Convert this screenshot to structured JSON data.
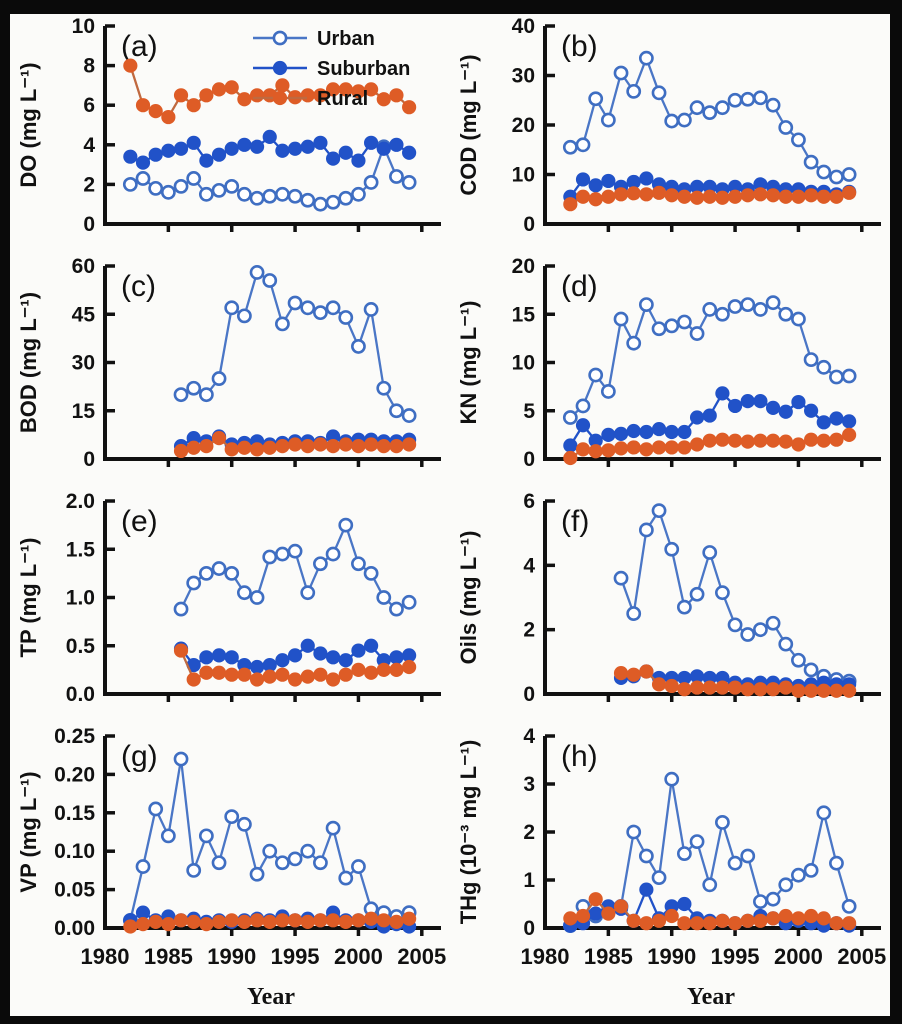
{
  "figure": {
    "xlabel": "Year",
    "x_ticks": [
      1980,
      1985,
      1990,
      1995,
      2000,
      2005
    ],
    "x_range": [
      1980,
      2006.2
    ],
    "colors": {
      "urban_line": "#4a76c6",
      "urban_marker_stroke": "#3f6ec2",
      "urban_marker_fill": "#ffffff",
      "suburban": "#2152c8",
      "rural_marker": "#de5c26",
      "rural_line": "#c0693f",
      "axis": "#111111"
    },
    "legend": [
      {
        "label": "Urban",
        "series": "urban"
      },
      {
        "label": "Suburban",
        "series": "suburban"
      },
      {
        "label": "Rural",
        "series": "rural"
      }
    ]
  },
  "chart_data": [
    {
      "type": "line",
      "panel": "(a)",
      "ylabel": "DO (mg L⁻¹)",
      "ylim": [
        0,
        10
      ],
      "yticks": [
        0,
        2,
        4,
        6,
        8,
        10
      ],
      "ytick_labels": [
        "0",
        "2",
        "4",
        "6",
        "8",
        "10"
      ],
      "show_legend": true,
      "series": [
        {
          "name": "Urban",
          "style": "urban",
          "start_year": 1982,
          "values": [
            2.0,
            2.3,
            1.8,
            1.6,
            1.9,
            2.3,
            1.5,
            1.7,
            1.9,
            1.5,
            1.3,
            1.4,
            1.5,
            1.4,
            1.2,
            1.0,
            1.1,
            1.3,
            1.5,
            2.1,
            3.9,
            2.4,
            2.1
          ]
        },
        {
          "name": "Suburban",
          "style": "suburban",
          "start_year": 1982,
          "values": [
            3.4,
            3.1,
            3.5,
            3.7,
            3.8,
            4.1,
            3.2,
            3.5,
            3.8,
            4.0,
            3.9,
            4.4,
            3.7,
            3.8,
            3.9,
            4.1,
            3.3,
            3.6,
            3.2,
            4.1,
            3.8,
            4.0,
            3.6
          ]
        },
        {
          "name": "Rural",
          "style": "rural",
          "start_year": 1982,
          "values": [
            8.0,
            6.0,
            5.7,
            5.4,
            6.5,
            6.0,
            6.5,
            6.8,
            6.9,
            6.3,
            6.5,
            6.5,
            7.0,
            6.4,
            6.5,
            6.5,
            6.8,
            6.8,
            6.7,
            6.8,
            6.3,
            6.5,
            5.9
          ]
        }
      ]
    },
    {
      "type": "line",
      "panel": "(b)",
      "ylabel": "COD (mg L⁻¹)",
      "ylim": [
        0,
        40
      ],
      "yticks": [
        0,
        10,
        20,
        30,
        40
      ],
      "ytick_labels": [
        "0",
        "10",
        "20",
        "30",
        "40"
      ],
      "series": [
        {
          "name": "Urban",
          "style": "urban",
          "start_year": 1982,
          "values": [
            15.5,
            16,
            25.3,
            21,
            30.5,
            26.8,
            33.5,
            26.5,
            20.8,
            21,
            23.5,
            22.5,
            23.5,
            25,
            25.2,
            25.5,
            24,
            19.5,
            17,
            12.5,
            10.5,
            9.5,
            10
          ]
        },
        {
          "name": "Suburban",
          "style": "suburban",
          "start_year": 1982,
          "values": [
            5.5,
            9,
            7.8,
            8.7,
            7.5,
            8.5,
            9.2,
            8,
            7.5,
            7,
            7.5,
            7.5,
            7,
            7.5,
            7,
            8,
            7.5,
            7,
            7,
            6.5,
            6.5,
            6,
            6.5
          ]
        },
        {
          "name": "Rural",
          "style": "rural",
          "start_year": 1982,
          "values": [
            4,
            5.5,
            5,
            5.5,
            6,
            6.2,
            6,
            6.3,
            5.8,
            5.5,
            5.3,
            5.5,
            5.3,
            5.5,
            5.8,
            6,
            5.8,
            5.5,
            5.5,
            5.8,
            5.5,
            5.5,
            6.3
          ]
        }
      ]
    },
    {
      "type": "line",
      "panel": "(c)",
      "ylabel": "BOD (mg L⁻¹)",
      "ylim": [
        0,
        60
      ],
      "yticks": [
        0,
        15,
        30,
        45,
        60
      ],
      "ytick_labels": [
        "0",
        "15",
        "30",
        "45",
        "60"
      ],
      "series": [
        {
          "name": "Urban",
          "style": "urban",
          "start_year": 1986,
          "values": [
            20,
            22,
            20,
            25,
            47,
            44.5,
            58,
            55.5,
            42,
            48.5,
            47,
            45.5,
            47,
            44,
            35,
            46.5,
            22,
            15,
            13.5
          ]
        },
        {
          "name": "Suburban",
          "style": "suburban",
          "start_year": 1986,
          "values": [
            4,
            6.5,
            5.5,
            7,
            4.5,
            5,
            5.5,
            4.5,
            5,
            5.5,
            5.5,
            5,
            7,
            5.5,
            6,
            6,
            5.5,
            5.5,
            6
          ]
        },
        {
          "name": "Rural",
          "style": "rural",
          "start_year": 1986,
          "values": [
            2.5,
            3.5,
            4,
            6.5,
            3,
            3.5,
            3,
            3.5,
            4,
            4.5,
            4,
            4.5,
            4,
            4.5,
            4,
            4.5,
            4,
            4,
            4.5
          ]
        }
      ]
    },
    {
      "type": "line",
      "panel": "(d)",
      "ylabel": "KN (mg L⁻¹)",
      "ylim": [
        0,
        20
      ],
      "yticks": [
        0,
        5,
        10,
        15,
        20
      ],
      "ytick_labels": [
        "0",
        "5",
        "10",
        "15",
        "20"
      ],
      "series": [
        {
          "name": "Urban",
          "style": "urban",
          "start_year": 1982,
          "values": [
            4.3,
            5.5,
            8.7,
            7,
            14.5,
            12,
            16,
            13.5,
            13.8,
            14.2,
            13,
            15.5,
            15,
            15.8,
            16,
            15.5,
            16.2,
            15,
            14.5,
            10.3,
            9.5,
            8.5,
            8.6
          ]
        },
        {
          "name": "Suburban",
          "style": "suburban",
          "start_year": 1982,
          "values": [
            1.4,
            3.5,
            1.9,
            2.5,
            2.6,
            2.9,
            2.8,
            3.1,
            2.8,
            2.8,
            4.3,
            4.5,
            6.8,
            5.5,
            6,
            6,
            5.3,
            4.9,
            5.9,
            5,
            3.8,
            4.2,
            3.9
          ]
        },
        {
          "name": "Rural",
          "style": "rural",
          "start_year": 1982,
          "values": [
            0.1,
            1,
            0.8,
            0.9,
            1.1,
            1.2,
            1,
            1.2,
            1.2,
            1.2,
            1.5,
            1.9,
            2,
            1.9,
            1.8,
            1.9,
            1.9,
            1.8,
            1.5,
            2,
            1.9,
            2,
            2.5
          ]
        }
      ]
    },
    {
      "type": "line",
      "panel": "(e)",
      "ylabel": "TP (mg L⁻¹)",
      "ylim": [
        0,
        2.0
      ],
      "yticks": [
        0,
        0.5,
        1.0,
        1.5,
        2.0
      ],
      "ytick_labels": [
        "0.0",
        "0.5",
        "1.0",
        "1.5",
        "2.0"
      ],
      "series": [
        {
          "name": "Urban",
          "style": "urban",
          "start_year": 1986,
          "values": [
            0.88,
            1.15,
            1.25,
            1.3,
            1.25,
            1.05,
            1.0,
            1.42,
            1.45,
            1.48,
            1.05,
            1.35,
            1.45,
            1.75,
            1.35,
            1.25,
            1.0,
            0.88,
            0.95
          ]
        },
        {
          "name": "Suburban",
          "style": "suburban",
          "start_year": 1986,
          "values": [
            0.47,
            0.3,
            0.38,
            0.4,
            0.38,
            0.3,
            0.28,
            0.3,
            0.35,
            0.4,
            0.5,
            0.42,
            0.38,
            0.35,
            0.45,
            0.5,
            0.35,
            0.38,
            0.4
          ]
        },
        {
          "name": "Rural",
          "style": "rural",
          "start_year": 1986,
          "values": [
            0.45,
            0.15,
            0.22,
            0.22,
            0.2,
            0.2,
            0.15,
            0.18,
            0.2,
            0.15,
            0.18,
            0.2,
            0.15,
            0.2,
            0.25,
            0.22,
            0.25,
            0.25,
            0.28
          ]
        }
      ]
    },
    {
      "type": "line",
      "panel": "(f)",
      "ylabel": "Oils (mg L⁻¹)",
      "ylim": [
        0,
        6
      ],
      "yticks": [
        0,
        2,
        4,
        6
      ],
      "ytick_labels": [
        "0",
        "2",
        "4",
        "6"
      ],
      "series": [
        {
          "name": "Urban",
          "style": "urban",
          "start_year": 1986,
          "values": [
            3.6,
            2.5,
            5.1,
            5.7,
            4.5,
            2.7,
            3.1,
            4.4,
            3.15,
            2.15,
            1.85,
            2.0,
            2.2,
            1.55,
            1.05,
            0.75,
            0.55,
            0.45,
            0.4
          ]
        },
        {
          "name": "Suburban",
          "style": "suburban",
          "start_year": 1986,
          "values": [
            0.5,
            0.55,
            0.7,
            0.5,
            0.5,
            0.5,
            0.55,
            0.5,
            0.5,
            0.35,
            0.3,
            0.35,
            0.35,
            0.3,
            0.25,
            0.3,
            0.35,
            0.3,
            0.3
          ]
        },
        {
          "name": "Rural",
          "style": "rural",
          "start_year": 1986,
          "values": [
            0.65,
            0.6,
            0.7,
            0.3,
            0.25,
            0.15,
            0.2,
            0.2,
            0.2,
            0.2,
            0.15,
            0.15,
            0.15,
            0.2,
            0.1,
            0.1,
            0.1,
            0.1,
            0.1
          ]
        }
      ]
    },
    {
      "type": "line",
      "panel": "(g)",
      "ylabel": "VP (mg L⁻¹)",
      "ylim": [
        0,
        0.25
      ],
      "yticks": [
        0,
        0.05,
        0.1,
        0.15,
        0.2,
        0.25
      ],
      "ytick_labels": [
        "0.00",
        "0.05",
        "0.10",
        "0.15",
        "0.20",
        "0.25"
      ],
      "show_x_labels": true,
      "series": [
        {
          "name": "Urban",
          "style": "urban",
          "start_year": 1982,
          "values": [
            0.01,
            0.08,
            0.155,
            0.12,
            0.22,
            0.075,
            0.12,
            0.085,
            0.145,
            0.135,
            0.07,
            0.1,
            0.085,
            0.09,
            0.1,
            0.085,
            0.13,
            0.065,
            0.08,
            0.025,
            0.02,
            0.015,
            0.02
          ]
        },
        {
          "name": "Suburban",
          "style": "suburban",
          "start_year": 1982,
          "values": [
            0.01,
            0.02,
            0.01,
            0.015,
            0.01,
            0.012,
            0.008,
            0.01,
            0.008,
            0.01,
            0.012,
            0.01,
            0.015,
            0.01,
            0.012,
            0.01,
            0.02,
            0.01,
            0.01,
            0.008,
            0.002,
            0.005,
            0.002
          ]
        },
        {
          "name": "Rural",
          "style": "rural",
          "start_year": 1982,
          "values": [
            0.002,
            0.005,
            0.008,
            0.005,
            0.01,
            0.008,
            0.005,
            0.008,
            0.01,
            0.008,
            0.01,
            0.008,
            0.01,
            0.01,
            0.008,
            0.01,
            0.01,
            0.008,
            0.01,
            0.012,
            0.01,
            0.008,
            0.012
          ]
        }
      ]
    },
    {
      "type": "line",
      "panel": "(h)",
      "ylabel": "THg (10⁻³ mg L⁻¹)",
      "ylim": [
        0,
        4
      ],
      "yticks": [
        0,
        1,
        2,
        3,
        4
      ],
      "ytick_labels": [
        "0",
        "1",
        "2",
        "3",
        "4"
      ],
      "show_x_labels": true,
      "series": [
        {
          "name": "Urban",
          "style": "urban",
          "start_year": 1982,
          "values": [
            0.05,
            0.45,
            0.25,
            0.35,
            0.45,
            2.0,
            1.5,
            1.05,
            3.1,
            1.55,
            1.8,
            0.9,
            2.2,
            1.35,
            1.5,
            0.55,
            0.6,
            0.9,
            1.1,
            1.2,
            2.4,
            1.35,
            0.45
          ]
        },
        {
          "name": "Suburban",
          "style": "suburban",
          "start_year": 1982,
          "values": [
            0.05,
            0.1,
            0.3,
            0.45,
            0.4,
            0.15,
            0.8,
            0.2,
            0.45,
            0.5,
            0.2,
            0.15,
            0.15,
            0.1,
            0.15,
            0.25,
            0.2,
            0.1,
            0.15,
            0.1,
            0.05,
            0.1,
            0.05
          ]
        },
        {
          "name": "Rural",
          "style": "rural",
          "start_year": 1982,
          "values": [
            0.2,
            0.25,
            0.6,
            0.3,
            0.45,
            0.15,
            0.1,
            0.15,
            0.25,
            0.1,
            0.1,
            0.1,
            0.15,
            0.1,
            0.15,
            0.15,
            0.2,
            0.25,
            0.2,
            0.25,
            0.2,
            0.1,
            0.1
          ]
        }
      ]
    }
  ]
}
